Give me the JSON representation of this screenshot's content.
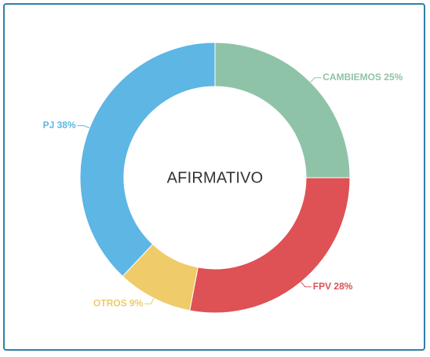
{
  "chart_data": {
    "type": "pie",
    "title": "",
    "center_label": "AFIRMATIVO",
    "legend": "none",
    "slices": [
      {
        "name": "CAMBIEMOS",
        "value": 25,
        "label": "CAMBIEMOS 25%",
        "color": "#8fc3a8"
      },
      {
        "name": "FPV",
        "value": 28,
        "label": "FPV 28%",
        "color": "#de5154"
      },
      {
        "name": "OTROS",
        "value": 9,
        "label": "OTROS 9%",
        "color": "#efcb69"
      },
      {
        "name": "PJ",
        "value": 38,
        "label": "PJ 38%",
        "color": "#5db6e4"
      }
    ]
  },
  "colors": {
    "card_border": "#2f7fa9",
    "center_text": "#333333"
  }
}
